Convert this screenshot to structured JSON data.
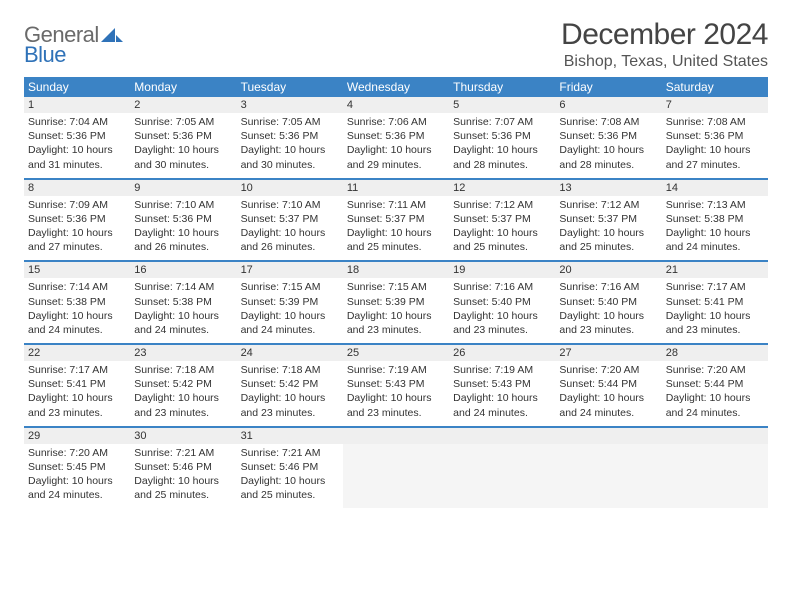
{
  "logo": {
    "line1_gray": "General",
    "line2_blue": "Blue",
    "sail_color": "#2f72b8"
  },
  "title": "December 2024",
  "location": "Bishop, Texas, United States",
  "colors": {
    "header_bg": "#3b83c5",
    "daynum_bg": "#efefef",
    "week_border": "#3b83c5",
    "text": "#333333"
  },
  "days_of_week": [
    "Sunday",
    "Monday",
    "Tuesday",
    "Wednesday",
    "Thursday",
    "Friday",
    "Saturday"
  ],
  "weeks": [
    {
      "nums": [
        "1",
        "2",
        "3",
        "4",
        "5",
        "6",
        "7"
      ],
      "cells": [
        {
          "sunrise": "Sunrise: 7:04 AM",
          "sunset": "Sunset: 5:36 PM",
          "d1": "Daylight: 10 hours",
          "d2": "and 31 minutes."
        },
        {
          "sunrise": "Sunrise: 7:05 AM",
          "sunset": "Sunset: 5:36 PM",
          "d1": "Daylight: 10 hours",
          "d2": "and 30 minutes."
        },
        {
          "sunrise": "Sunrise: 7:05 AM",
          "sunset": "Sunset: 5:36 PM",
          "d1": "Daylight: 10 hours",
          "d2": "and 30 minutes."
        },
        {
          "sunrise": "Sunrise: 7:06 AM",
          "sunset": "Sunset: 5:36 PM",
          "d1": "Daylight: 10 hours",
          "d2": "and 29 minutes."
        },
        {
          "sunrise": "Sunrise: 7:07 AM",
          "sunset": "Sunset: 5:36 PM",
          "d1": "Daylight: 10 hours",
          "d2": "and 28 minutes."
        },
        {
          "sunrise": "Sunrise: 7:08 AM",
          "sunset": "Sunset: 5:36 PM",
          "d1": "Daylight: 10 hours",
          "d2": "and 28 minutes."
        },
        {
          "sunrise": "Sunrise: 7:08 AM",
          "sunset": "Sunset: 5:36 PM",
          "d1": "Daylight: 10 hours",
          "d2": "and 27 minutes."
        }
      ]
    },
    {
      "nums": [
        "8",
        "9",
        "10",
        "11",
        "12",
        "13",
        "14"
      ],
      "cells": [
        {
          "sunrise": "Sunrise: 7:09 AM",
          "sunset": "Sunset: 5:36 PM",
          "d1": "Daylight: 10 hours",
          "d2": "and 27 minutes."
        },
        {
          "sunrise": "Sunrise: 7:10 AM",
          "sunset": "Sunset: 5:36 PM",
          "d1": "Daylight: 10 hours",
          "d2": "and 26 minutes."
        },
        {
          "sunrise": "Sunrise: 7:10 AM",
          "sunset": "Sunset: 5:37 PM",
          "d1": "Daylight: 10 hours",
          "d2": "and 26 minutes."
        },
        {
          "sunrise": "Sunrise: 7:11 AM",
          "sunset": "Sunset: 5:37 PM",
          "d1": "Daylight: 10 hours",
          "d2": "and 25 minutes."
        },
        {
          "sunrise": "Sunrise: 7:12 AM",
          "sunset": "Sunset: 5:37 PM",
          "d1": "Daylight: 10 hours",
          "d2": "and 25 minutes."
        },
        {
          "sunrise": "Sunrise: 7:12 AM",
          "sunset": "Sunset: 5:37 PM",
          "d1": "Daylight: 10 hours",
          "d2": "and 25 minutes."
        },
        {
          "sunrise": "Sunrise: 7:13 AM",
          "sunset": "Sunset: 5:38 PM",
          "d1": "Daylight: 10 hours",
          "d2": "and 24 minutes."
        }
      ]
    },
    {
      "nums": [
        "15",
        "16",
        "17",
        "18",
        "19",
        "20",
        "21"
      ],
      "cells": [
        {
          "sunrise": "Sunrise: 7:14 AM",
          "sunset": "Sunset: 5:38 PM",
          "d1": "Daylight: 10 hours",
          "d2": "and 24 minutes."
        },
        {
          "sunrise": "Sunrise: 7:14 AM",
          "sunset": "Sunset: 5:38 PM",
          "d1": "Daylight: 10 hours",
          "d2": "and 24 minutes."
        },
        {
          "sunrise": "Sunrise: 7:15 AM",
          "sunset": "Sunset: 5:39 PM",
          "d1": "Daylight: 10 hours",
          "d2": "and 24 minutes."
        },
        {
          "sunrise": "Sunrise: 7:15 AM",
          "sunset": "Sunset: 5:39 PM",
          "d1": "Daylight: 10 hours",
          "d2": "and 23 minutes."
        },
        {
          "sunrise": "Sunrise: 7:16 AM",
          "sunset": "Sunset: 5:40 PM",
          "d1": "Daylight: 10 hours",
          "d2": "and 23 minutes."
        },
        {
          "sunrise": "Sunrise: 7:16 AM",
          "sunset": "Sunset: 5:40 PM",
          "d1": "Daylight: 10 hours",
          "d2": "and 23 minutes."
        },
        {
          "sunrise": "Sunrise: 7:17 AM",
          "sunset": "Sunset: 5:41 PM",
          "d1": "Daylight: 10 hours",
          "d2": "and 23 minutes."
        }
      ]
    },
    {
      "nums": [
        "22",
        "23",
        "24",
        "25",
        "26",
        "27",
        "28"
      ],
      "cells": [
        {
          "sunrise": "Sunrise: 7:17 AM",
          "sunset": "Sunset: 5:41 PM",
          "d1": "Daylight: 10 hours",
          "d2": "and 23 minutes."
        },
        {
          "sunrise": "Sunrise: 7:18 AM",
          "sunset": "Sunset: 5:42 PM",
          "d1": "Daylight: 10 hours",
          "d2": "and 23 minutes."
        },
        {
          "sunrise": "Sunrise: 7:18 AM",
          "sunset": "Sunset: 5:42 PM",
          "d1": "Daylight: 10 hours",
          "d2": "and 23 minutes."
        },
        {
          "sunrise": "Sunrise: 7:19 AM",
          "sunset": "Sunset: 5:43 PM",
          "d1": "Daylight: 10 hours",
          "d2": "and 23 minutes."
        },
        {
          "sunrise": "Sunrise: 7:19 AM",
          "sunset": "Sunset: 5:43 PM",
          "d1": "Daylight: 10 hours",
          "d2": "and 24 minutes."
        },
        {
          "sunrise": "Sunrise: 7:20 AM",
          "sunset": "Sunset: 5:44 PM",
          "d1": "Daylight: 10 hours",
          "d2": "and 24 minutes."
        },
        {
          "sunrise": "Sunrise: 7:20 AM",
          "sunset": "Sunset: 5:44 PM",
          "d1": "Daylight: 10 hours",
          "d2": "and 24 minutes."
        }
      ]
    },
    {
      "nums": [
        "29",
        "30",
        "31",
        "",
        "",
        "",
        ""
      ],
      "cells": [
        {
          "sunrise": "Sunrise: 7:20 AM",
          "sunset": "Sunset: 5:45 PM",
          "d1": "Daylight: 10 hours",
          "d2": "and 24 minutes."
        },
        {
          "sunrise": "Sunrise: 7:21 AM",
          "sunset": "Sunset: 5:46 PM",
          "d1": "Daylight: 10 hours",
          "d2": "and 25 minutes."
        },
        {
          "sunrise": "Sunrise: 7:21 AM",
          "sunset": "Sunset: 5:46 PM",
          "d1": "Daylight: 10 hours",
          "d2": "and 25 minutes."
        },
        null,
        null,
        null,
        null
      ]
    }
  ]
}
